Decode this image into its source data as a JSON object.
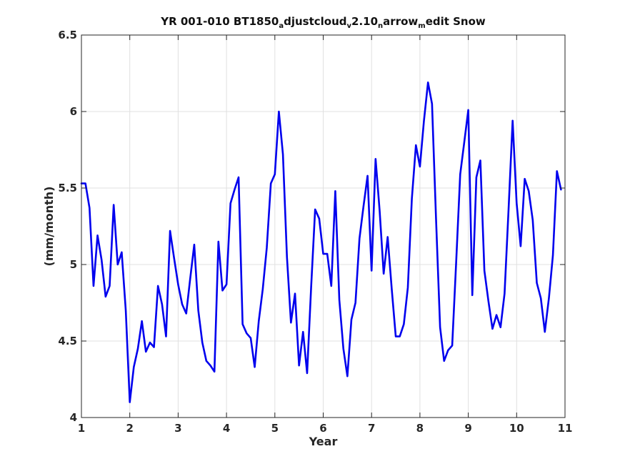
{
  "chart_data": {
    "type": "line",
    "title_parts": [
      {
        "text": "YR 001-010 BT1850",
        "sub": false
      },
      {
        "text": "a",
        "sub": true
      },
      {
        "text": "djustcloud",
        "sub": false
      },
      {
        "text": "v",
        "sub": true
      },
      {
        "text": "2.10",
        "sub": false
      },
      {
        "text": "n",
        "sub": true
      },
      {
        "text": "arrow",
        "sub": false
      },
      {
        "text": "m",
        "sub": true
      },
      {
        "text": "edit Snow",
        "sub": false
      }
    ],
    "xlabel": "Year",
    "ylabel": "(mm/month)",
    "xlim": [
      1,
      11
    ],
    "ylim": [
      4,
      6.5
    ],
    "xticks": [
      "1",
      "2",
      "3",
      "4",
      "5",
      "6",
      "7",
      "8",
      "9",
      "10",
      "11"
    ],
    "yticks": [
      "4",
      "4.5",
      "5",
      "5.5",
      "6",
      "6.5"
    ],
    "grid": true,
    "colors": {
      "series": "#0000ee",
      "axes": "#262626",
      "grid": "#e0e0e0"
    },
    "series": [
      {
        "x": [
          1.0,
          1.083,
          1.167,
          1.25,
          1.333,
          1.417,
          1.5,
          1.583,
          1.667,
          1.75,
          1.833,
          1.917,
          2.0,
          2.083,
          2.167,
          2.25,
          2.333,
          2.417,
          2.5,
          2.583,
          2.667,
          2.75,
          2.833,
          2.917,
          3.0,
          3.083,
          3.167,
          3.25,
          3.333,
          3.417,
          3.5,
          3.583,
          3.667,
          3.75,
          3.833,
          3.917,
          4.0,
          4.083,
          4.167,
          4.25,
          4.333,
          4.417,
          4.5,
          4.583,
          4.667,
          4.75,
          4.833,
          4.917,
          5.0,
          5.083,
          5.167,
          5.25,
          5.333,
          5.417,
          5.5,
          5.583,
          5.667,
          5.75,
          5.833,
          5.917,
          6.0,
          6.083,
          6.167,
          6.25,
          6.333,
          6.417,
          6.5,
          6.583,
          6.667,
          6.75,
          6.833,
          6.917,
          7.0,
          7.083,
          7.167,
          7.25,
          7.333,
          7.417,
          7.5,
          7.583,
          7.667,
          7.75,
          7.833,
          7.917,
          8.0,
          8.083,
          8.167,
          8.25,
          8.333,
          8.417,
          8.5,
          8.583,
          8.667,
          8.75,
          8.833,
          8.917,
          9.0,
          9.083,
          9.167,
          9.25,
          9.333,
          9.417,
          9.5,
          9.583,
          9.667,
          9.75,
          9.833,
          9.917,
          10.0,
          10.083,
          10.167,
          10.25,
          10.333,
          10.417,
          10.5,
          10.583,
          10.667,
          10.75,
          10.833,
          10.917
        ],
        "y": [
          5.53,
          5.53,
          5.37,
          4.86,
          5.19,
          5.03,
          4.79,
          4.86,
          5.39,
          5.0,
          5.08,
          4.7,
          4.1,
          4.33,
          4.45,
          4.63,
          4.43,
          4.49,
          4.46,
          4.86,
          4.74,
          4.53,
          5.22,
          5.04,
          4.87,
          4.74,
          4.68,
          4.91,
          5.13,
          4.7,
          4.49,
          4.37,
          4.34,
          4.3,
          5.15,
          4.83,
          4.87,
          5.4,
          5.49,
          5.57,
          4.61,
          4.55,
          4.52,
          4.33,
          4.63,
          4.84,
          5.11,
          5.53,
          5.59,
          6.0,
          5.72,
          5.05,
          4.62,
          4.81,
          4.34,
          4.56,
          4.29,
          4.85,
          5.36,
          5.3,
          5.07,
          5.07,
          4.86,
          5.48,
          4.77,
          4.45,
          4.27,
          4.64,
          4.75,
          5.17,
          5.38,
          5.58,
          4.96,
          5.69,
          5.35,
          4.94,
          5.18,
          4.84,
          4.53,
          4.53,
          4.61,
          4.85,
          5.43,
          5.78,
          5.64,
          5.94,
          6.19,
          6.05,
          5.3,
          4.59,
          4.37,
          4.44,
          4.47,
          5.02,
          5.59,
          5.8,
          6.01,
          4.8,
          5.57,
          5.68,
          4.96,
          4.76,
          4.58,
          4.67,
          4.59,
          4.81,
          5.36,
          5.94,
          5.4,
          5.12,
          5.56,
          5.48,
          5.29,
          4.88,
          4.78,
          4.56,
          4.78,
          5.06,
          5.61,
          5.49
        ]
      }
    ]
  }
}
